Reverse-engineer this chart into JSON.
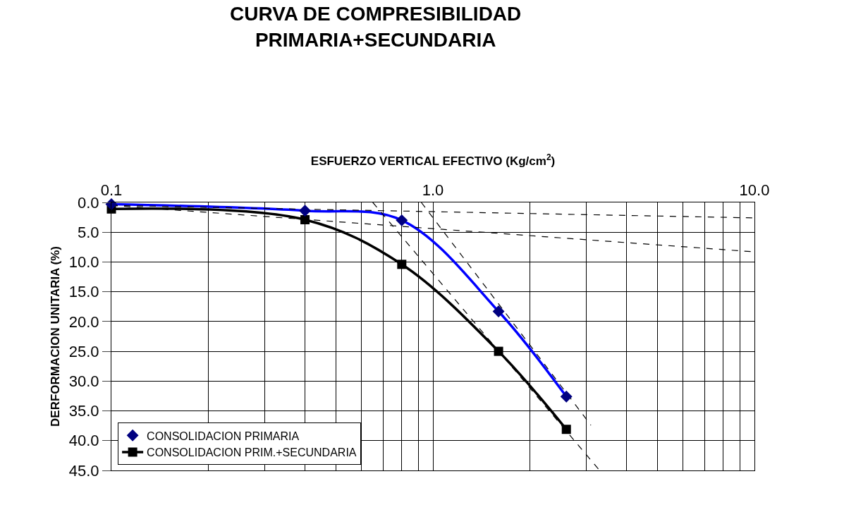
{
  "chart_data": {
    "type": "scatter",
    "title": "CURVA DE COMPRESIBILIDAD\nPRIMARIA+SECUNDARIA",
    "xlabel": "ESFUERZO VERTICAL EFECTIVO (Kg/cm$^{2}$)",
    "ylabel": "DERFORMACION UNITARIA (%)",
    "log": "x",
    "xlim": [
      0.1,
      10
    ],
    "xticks": [
      0.1,
      {
        "value": 1,
        "label": "1.0"
      },
      {
        "value": 10,
        "label": "10.0"
      }
    ],
    "ylim": [
      45,
      0
    ],
    "yticks": [
      {
        "value": 0,
        "label": "0.0"
      },
      {
        "value": 5,
        "label": "5.0"
      },
      {
        "value": 10,
        "label": "10.0"
      },
      {
        "value": 15,
        "label": "15.0"
      },
      {
        "value": 20,
        "label": "20.0"
      },
      {
        "value": 25,
        "label": "25.0"
      },
      {
        "value": 30,
        "label": "30.0"
      },
      {
        "value": 35,
        "label": "35.0"
      },
      {
        "value": 40,
        "label": "40.0"
      },
      {
        "value": 45,
        "label": "45.0"
      }
    ],
    "grid": true,
    "legend": "bottom left",
    "series": [
      {
        "name": "CONSOLIDACION PRIMARIA",
        "marker": "diamond",
        "color": "#000080",
        "x": [
          0.1,
          0.4,
          0.8,
          1.6,
          2.6
        ],
        "values": [
          0.3,
          1.4,
          3.0,
          18.3,
          32.6
        ]
      },
      {
        "type": "line",
        "marker": "none",
        "color": "#0000ff",
        "x": [
          0.1,
          0.4,
          0.8,
          1.6,
          2.6
        ],
        "values": [
          0.3,
          1.4,
          3.0,
          18.3,
          32.6
        ]
      },
      {
        "name": "CONSOLIDACION PRIM.+SECUNDARIA",
        "type": "line",
        "marker": "square",
        "color": "#000000",
        "x": [
          0.1,
          0.4,
          0.8,
          1.6,
          2.6
        ],
        "values": [
          1.1,
          2.9,
          10.4,
          25.0,
          38.1
        ]
      },
      {
        "type": "line",
        "marker": "none",
        "line_style": "dashed",
        "color": "#000000",
        "x": [
          0.1,
          10
        ],
        "values": [
          0.5,
          2.6
        ]
      },
      {
        "type": "line",
        "marker": "none",
        "line_style": "dashed",
        "color": "#000000",
        "x": [
          0.1,
          10
        ],
        "values": [
          0.5,
          8.3
        ]
      },
      {
        "type": "line",
        "marker": "none",
        "line_style": "dashed",
        "color": "#000000",
        "x": [
          0.65,
          3.3
        ],
        "values": [
          0,
          45
        ]
      },
      {
        "type": "line",
        "marker": "none",
        "line_style": "dashed",
        "color": "#000000",
        "x": [
          0.92,
          3.1
        ],
        "values": [
          0,
          37.4
        ]
      }
    ]
  }
}
